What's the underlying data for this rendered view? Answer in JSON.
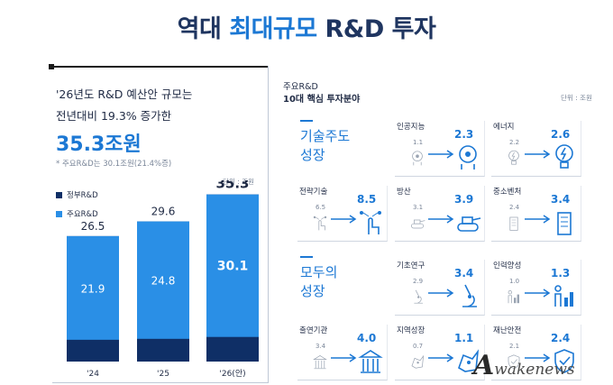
{
  "headline": {
    "part1": "역대 ",
    "part2": "최대규모",
    "part3": " R&D 투자"
  },
  "left": {
    "subtitle_line1": "'26년도 R&D 예산안 규모는",
    "subtitle_line2": "전년대비 19.3% 증가한",
    "amount": "35.3조원",
    "note": "* 주요R&D는 30.1조원(21.4%증)",
    "unit": "단위 : 조원",
    "legend": [
      {
        "label": "정부R&D",
        "color": "#0f2f66"
      },
      {
        "label": "주요R&D",
        "color": "#2a8fe6"
      }
    ]
  },
  "chart_data": {
    "type": "bar",
    "categories": [
      "'24",
      "'25",
      "'26(안)"
    ],
    "series": [
      {
        "name": "정부R&D",
        "values": [
          26.5,
          29.6,
          35.3
        ]
      },
      {
        "name": "주요R&D",
        "values": [
          21.9,
          24.8,
          30.1
        ]
      }
    ],
    "unit": "단위 : 조원",
    "ylim": [
      0,
      36
    ],
    "colors": {
      "gov": "#0f2f66",
      "major": "#2a8fe6"
    }
  },
  "right": {
    "title_line1": "주요R&D",
    "title_line2": "10대 핵심 투자분야",
    "unit": "단위 : 조원",
    "groups": [
      {
        "label_line1": "기술주도",
        "label_line2": "성장"
      },
      {
        "label_line1": "모두의",
        "label_line2": "성장"
      }
    ],
    "cards": [
      {
        "title": "인공지능",
        "prev": "1.1",
        "curr": "2.3",
        "icon": "ai-head-icon"
      },
      {
        "title": "에너지",
        "prev": "2.2",
        "curr": "2.6",
        "icon": "energy-bulb-icon"
      },
      {
        "title": "전략기술",
        "prev": "6.5",
        "curr": "8.5",
        "icon": "touch-circuit-icon"
      },
      {
        "title": "방산",
        "prev": "3.1",
        "curr": "3.9",
        "icon": "tank-icon"
      },
      {
        "title": "중소벤처",
        "prev": "2.4",
        "curr": "3.4",
        "icon": "building-icon"
      },
      {
        "title": "기초연구",
        "prev": "2.9",
        "curr": "3.4",
        "icon": "microscope-icon"
      },
      {
        "title": "인력양성",
        "prev": "1.0",
        "curr": "1.3",
        "icon": "people-chart-icon"
      },
      {
        "title": "출연기관",
        "prev": "3.4",
        "curr": "4.0",
        "icon": "institute-building-icon"
      },
      {
        "title": "지역성장",
        "prev": "0.7",
        "curr": "1.1",
        "icon": "region-map-icon"
      },
      {
        "title": "재난안전",
        "prev": "2.1",
        "curr": "2.4",
        "icon": "safety-shield-icon"
      }
    ]
  },
  "watermark": {
    "cap": "A",
    "rest": "wakenews"
  }
}
